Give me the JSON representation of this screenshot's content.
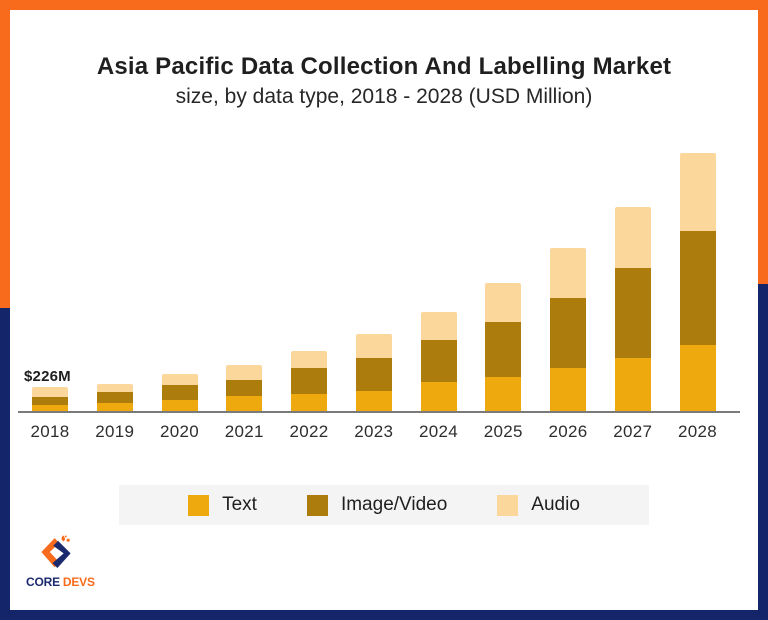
{
  "header": {
    "title": "Asia Pacific Data Collection And Labelling Market",
    "subtitle": "size, by data type, 2018 - 2028 (USD Million)"
  },
  "chart_data": {
    "type": "bar",
    "stacked": true,
    "title": "Asia Pacific Data Collection And Labelling Market",
    "subtitle": "size, by data type, 2018 - 2028 (USD Million)",
    "unit": "USD Million",
    "categories": [
      "2018",
      "2019",
      "2020",
      "2021",
      "2022",
      "2023",
      "2024",
      "2025",
      "2026",
      "2027",
      "2028"
    ],
    "series": [
      {
        "name": "Text",
        "color": "#EDA90E",
        "values": [
          60,
          80,
          107,
          142,
          161,
          190,
          278,
          326,
          406,
          501,
          630
        ]
      },
      {
        "name": "Image/Video",
        "color": "#AC7C0D",
        "values": [
          76,
          100,
          140,
          153,
          244,
          310,
          396,
          523,
          665,
          855,
          1080
        ]
      },
      {
        "name": "Audio",
        "color": "#FBD79B",
        "values": [
          90,
          78,
          108,
          142,
          168,
          232,
          269,
          364,
          475,
          585,
          744
        ]
      }
    ],
    "totals_estimated": [
      226,
      258,
      355,
      437,
      573,
      732,
      943,
      1213,
      1546,
      1941,
      2454
    ],
    "annotation": {
      "text": "$226M",
      "year": "2018",
      "value": 226
    },
    "xlabel": "",
    "ylabel": "",
    "ylim": [
      0,
      2600
    ],
    "grid": false,
    "legend_position": "bottom"
  },
  "logo": {
    "company_part1": "CORE",
    "company_part2": "DEVS"
  },
  "colors": {
    "frame-orange": "#F96B1C",
    "frame-navy": "#152569",
    "logo-navy": "#1B2B6E",
    "axis-gray": "#7A7A7A",
    "legend-bg": "#F4F4F4",
    "title-text": "#1F1F1F",
    "bar-gold": "#EDA90E",
    "bar-brown": "#AC7C0D",
    "bar-cream": "#FBD79B"
  }
}
